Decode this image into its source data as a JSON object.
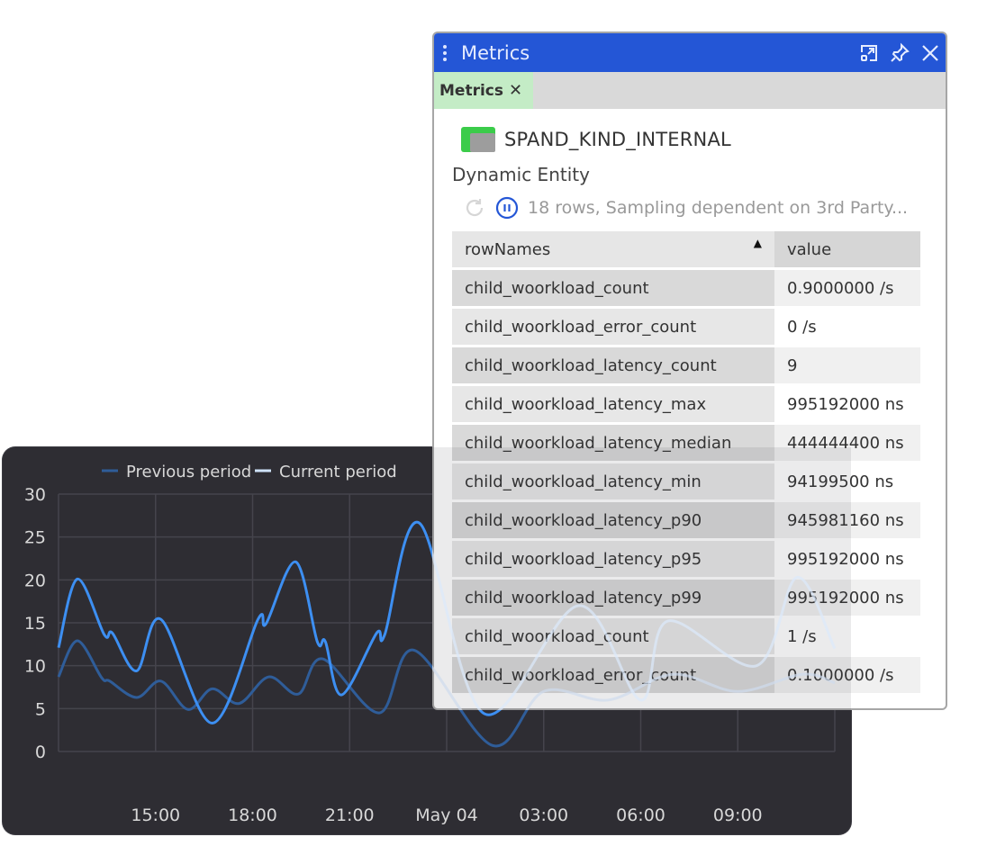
{
  "panel": {
    "title": "Metrics",
    "icons": [
      "kebab-menu-icon",
      "popout-icon",
      "pin-icon",
      "close-icon"
    ],
    "tab": {
      "label": "Metrics",
      "close": "✕"
    },
    "entity_name": "SPAND_KIND_INTERNAL",
    "subtitle": "Dynamic Entity",
    "status_text": "18 rows, Sampling dependent on 3rd Party...",
    "table": {
      "columns": [
        "rowNames",
        "value"
      ],
      "sorted_column": "rowNames",
      "rows": [
        [
          "child_woorkload_count",
          "0.9000000 /s"
        ],
        [
          "child_woorkload_error_count",
          "0 /s"
        ],
        [
          "child_woorkload_latency_count",
          "9"
        ],
        [
          "child_woorkload_latency_max",
          "995192000 ns"
        ],
        [
          "child_woorkload_latency_median",
          "444444400 ns"
        ],
        [
          "child_woorkload_latency_min",
          "94199500 ns"
        ],
        [
          "child_woorkload_latency_p90",
          "945981160 ns"
        ],
        [
          "child_woorkload_latency_p95",
          "995192000 ns"
        ],
        [
          "child_woorkload_latency_p99",
          "995192000 ns"
        ],
        [
          "child_woorkload_count",
          "1 /s"
        ],
        [
          "child_woorkload_error_count",
          "0.1000000 /s"
        ]
      ]
    },
    "colors": {
      "titlebar": "#2456d6",
      "tab": "#c4ecc6",
      "entity_green": "#3bcc4a",
      "pause": "#2456d6"
    }
  },
  "chart_data": {
    "type": "line",
    "title": "",
    "xlabel": "",
    "ylabel": "",
    "xlim": [
      "May 03 12:00",
      "May 04 12:00"
    ],
    "ylim": [
      0,
      30
    ],
    "yticks": [
      "0",
      "5",
      "10",
      "15",
      "20",
      "25",
      "30"
    ],
    "xticks": [
      {
        "at": "May 03 15:00",
        "label": "15:00"
      },
      {
        "at": "May 03 18:00",
        "label": "18:00"
      },
      {
        "at": "May 03 21:00",
        "label": "21:00"
      },
      {
        "at": "May 04 00:00",
        "label": "May 04"
      },
      {
        "at": "May 04 03:00",
        "label": "03:00"
      },
      {
        "at": "May 04 06:00",
        "label": "06:00"
      },
      {
        "at": "May 04 09:00",
        "label": "09:00"
      }
    ],
    "grid": true,
    "legend": "top-center",
    "smooth": true,
    "series": [
      {
        "name": "Previous period",
        "color": "#2f5d99",
        "points": [
          [
            "May 03 12:00",
            8.7
          ],
          [
            "May 03 12:35",
            12.9
          ],
          [
            "May 03 13:20",
            8.6
          ],
          [
            "May 03 13:35",
            8.2
          ],
          [
            "May 03 14:25",
            6.3
          ],
          [
            "May 03 15:10",
            8.2
          ],
          [
            "May 03 16:00",
            4.9
          ],
          [
            "May 03 16:45",
            7.3
          ],
          [
            "May 03 17:35",
            5.6
          ],
          [
            "May 03 18:30",
            8.7
          ],
          [
            "May 03 19:25",
            6.7
          ],
          [
            "May 03 20:10",
            10.8
          ],
          [
            "May 03 21:55",
            4.5
          ],
          [
            "May 03 23:00",
            11.8
          ],
          [
            "May 04 01:25",
            0.7
          ],
          [
            "May 04 03:00",
            7
          ],
          [
            "May 04 05:00",
            6
          ],
          [
            "May 04 07:00",
            9
          ],
          [
            "May 04 09:00",
            7
          ],
          [
            "May 04 11:00",
            9
          ],
          [
            "May 04 12:00",
            8
          ]
        ]
      },
      {
        "name": "Current period",
        "color": "#3d8ff2",
        "points": [
          [
            "May 03 12:00",
            12.1
          ],
          [
            "May 03 12:35",
            20.1
          ],
          [
            "May 03 13:25",
            13.6
          ],
          [
            "May 03 13:40",
            13.8
          ],
          [
            "May 03 14:25",
            9.4
          ],
          [
            "May 03 15:10",
            15.4
          ],
          [
            "May 03 16:45",
            3.3
          ],
          [
            "May 03 18:10",
            15.4
          ],
          [
            "May 03 18:25",
            14.9
          ],
          [
            "May 03 19:20",
            22.1
          ],
          [
            "May 03 20:00",
            12.8
          ],
          [
            "May 03 20:15",
            12.8
          ],
          [
            "May 03 20:45",
            6.6
          ],
          [
            "May 03 21:50",
            13.8
          ],
          [
            "May 03 22:05",
            13.6
          ],
          [
            "May 03 23:10",
            26.6
          ],
          [
            "May 04 01:10",
            4.4
          ],
          [
            "May 04 04:05",
            17
          ],
          [
            "May 04 06:00",
            6
          ],
          [
            "May 04 06:50",
            15.2
          ],
          [
            "May 04 09:35",
            10
          ],
          [
            "May 04 10:50",
            20.3
          ],
          [
            "May 04 12:00",
            12
          ]
        ]
      }
    ]
  }
}
